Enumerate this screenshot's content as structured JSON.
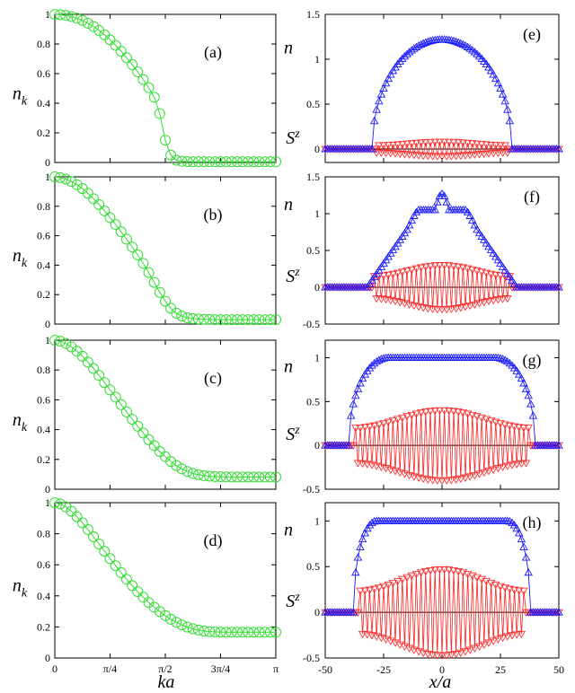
{
  "figure": {
    "left_xlabel": "ka",
    "right_xlabel": "x/a"
  },
  "chart_data": [
    {
      "type": "scatter",
      "panel": "(a)",
      "ylabel": "n_k",
      "xlim": [
        0,
        3.1416
      ],
      "ylim": [
        0,
        1
      ],
      "yticks": [
        "0",
        "0.2",
        "0.4",
        "0.6",
        "0.8",
        "1"
      ],
      "xticks": [],
      "series": [
        {
          "color": "#33dd33",
          "marker": "circle",
          "x": [
            0,
            0.0785,
            0.157,
            0.236,
            0.314,
            0.393,
            0.471,
            0.55,
            0.628,
            0.707,
            0.785,
            0.864,
            0.942,
            1.021,
            1.1,
            1.178,
            1.257,
            1.335,
            1.414,
            1.492,
            1.571,
            1.649,
            1.728,
            1.806,
            1.885,
            1.963,
            2.042,
            2.121,
            2.199,
            2.278,
            2.356,
            2.435,
            2.513,
            2.592,
            2.67,
            2.749,
            2.827,
            2.906,
            2.985,
            3.063,
            3.142
          ],
          "y": [
            1.0,
            0.998,
            0.993,
            0.985,
            0.974,
            0.959,
            0.94,
            0.918,
            0.892,
            0.862,
            0.828,
            0.791,
            0.751,
            0.707,
            0.661,
            0.612,
            0.56,
            0.505,
            0.44,
            0.33,
            0.15,
            0.05,
            0.015,
            0.008,
            0.006,
            0.005,
            0.005,
            0.005,
            0.005,
            0.005,
            0.005,
            0.005,
            0.005,
            0.005,
            0.005,
            0.005,
            0.005,
            0.005,
            0.005,
            0.005,
            0.005
          ]
        }
      ]
    },
    {
      "type": "scatter",
      "panel": "(b)",
      "ylabel": "n_k",
      "xlim": [
        0,
        3.1416
      ],
      "ylim": [
        0,
        1
      ],
      "yticks": [
        "0",
        "0.2",
        "0.4",
        "0.6",
        "0.8",
        "1"
      ],
      "xticks": [],
      "series": [
        {
          "color": "#33dd33",
          "marker": "circle",
          "x": [
            0,
            0.0785,
            0.157,
            0.236,
            0.314,
            0.393,
            0.471,
            0.55,
            0.628,
            0.707,
            0.785,
            0.864,
            0.942,
            1.021,
            1.1,
            1.178,
            1.257,
            1.335,
            1.414,
            1.492,
            1.571,
            1.649,
            1.728,
            1.806,
            1.885,
            1.963,
            2.042,
            2.121,
            2.199,
            2.278,
            2.356,
            2.435,
            2.513,
            2.592,
            2.67,
            2.749,
            2.827,
            2.906,
            2.985,
            3.063,
            3.142
          ],
          "y": [
            1.0,
            0.995,
            0.985,
            0.968,
            0.947,
            0.92,
            0.888,
            0.851,
            0.812,
            0.769,
            0.723,
            0.676,
            0.627,
            0.576,
            0.524,
            0.47,
            0.412,
            0.35,
            0.283,
            0.215,
            0.155,
            0.107,
            0.074,
            0.054,
            0.043,
            0.037,
            0.034,
            0.032,
            0.031,
            0.03,
            0.03,
            0.03,
            0.03,
            0.03,
            0.03,
            0.03,
            0.03,
            0.03,
            0.03,
            0.03,
            0.03
          ]
        }
      ]
    },
    {
      "type": "scatter",
      "panel": "(c)",
      "ylabel": "n_k",
      "xlim": [
        0,
        3.1416
      ],
      "ylim": [
        0,
        1
      ],
      "yticks": [
        "0",
        "0.2",
        "0.4",
        "0.6",
        "0.8",
        "1"
      ],
      "xticks": [],
      "series": [
        {
          "color": "#33dd33",
          "marker": "circle",
          "x": [
            0,
            0.0785,
            0.157,
            0.236,
            0.314,
            0.393,
            0.471,
            0.55,
            0.628,
            0.707,
            0.785,
            0.864,
            0.942,
            1.021,
            1.1,
            1.178,
            1.257,
            1.335,
            1.414,
            1.492,
            1.571,
            1.649,
            1.728,
            1.806,
            1.885,
            1.963,
            2.042,
            2.121,
            2.199,
            2.278,
            2.356,
            2.435,
            2.513,
            2.592,
            2.67,
            2.749,
            2.827,
            2.906,
            2.985,
            3.063,
            3.142
          ],
          "y": [
            1.0,
            0.993,
            0.978,
            0.955,
            0.926,
            0.892,
            0.853,
            0.81,
            0.764,
            0.716,
            0.667,
            0.618,
            0.568,
            0.519,
            0.47,
            0.423,
            0.377,
            0.333,
            0.292,
            0.253,
            0.218,
            0.186,
            0.159,
            0.136,
            0.119,
            0.106,
            0.097,
            0.091,
            0.087,
            0.085,
            0.084,
            0.083,
            0.082,
            0.082,
            0.082,
            0.082,
            0.082,
            0.082,
            0.082,
            0.082,
            0.082
          ]
        }
      ]
    },
    {
      "type": "scatter",
      "panel": "(d)",
      "ylabel": "n_k",
      "xlim": [
        0,
        3.1416
      ],
      "ylim": [
        0,
        1
      ],
      "yticks": [
        "0",
        "0.2",
        "0.4",
        "0.6",
        "0.8",
        "1"
      ],
      "xticks": [
        "0",
        "π/4",
        "π/2",
        "3π/4",
        "π"
      ],
      "series": [
        {
          "color": "#33dd33",
          "marker": "circle",
          "x": [
            0,
            0.0785,
            0.157,
            0.236,
            0.314,
            0.393,
            0.471,
            0.55,
            0.628,
            0.707,
            0.785,
            0.864,
            0.942,
            1.021,
            1.1,
            1.178,
            1.257,
            1.335,
            1.414,
            1.492,
            1.571,
            1.649,
            1.728,
            1.806,
            1.885,
            1.963,
            2.042,
            2.121,
            2.199,
            2.278,
            2.356,
            2.435,
            2.513,
            2.592,
            2.67,
            2.749,
            2.827,
            2.906,
            2.985,
            3.063,
            3.142
          ],
          "y": [
            1.0,
            0.992,
            0.973,
            0.945,
            0.91,
            0.87,
            0.827,
            0.781,
            0.734,
            0.687,
            0.64,
            0.594,
            0.55,
            0.507,
            0.466,
            0.428,
            0.392,
            0.358,
            0.327,
            0.299,
            0.273,
            0.25,
            0.23,
            0.213,
            0.199,
            0.188,
            0.18,
            0.174,
            0.17,
            0.168,
            0.167,
            0.166,
            0.166,
            0.166,
            0.166,
            0.166,
            0.166,
            0.166,
            0.166,
            0.166,
            0.166
          ]
        }
      ]
    },
    {
      "type": "scatter",
      "panel": "(e)",
      "ylabel_top": "n",
      "ylabel_bottom": "S^z",
      "xlim": [
        -50,
        50
      ],
      "ylim": [
        -0.15,
        1.5
      ],
      "yticks": [
        "0",
        "0.5",
        "1",
        "1.5"
      ],
      "xticks": [],
      "n_profile": {
        "type": "dome",
        "edge": 30,
        "height": 1.22,
        "plateau": 0
      },
      "sz_profile": {
        "type": "stagger",
        "edge": 29,
        "amp": 0.08
      },
      "series": [
        {
          "name": "n",
          "color": "#1a1aff",
          "marker": "triangle-up"
        },
        {
          "name": "S^z",
          "color": "#ff2020",
          "marker": "triangle-down"
        }
      ]
    },
    {
      "type": "scatter",
      "panel": "(f)",
      "ylabel_top": "n",
      "ylabel_bottom": "S^z",
      "xlim": [
        -50,
        50
      ],
      "ylim": [
        -0.5,
        1.5
      ],
      "yticks": [
        "-0.5",
        "0",
        "0.5",
        "1",
        "1.5"
      ],
      "xticks": [],
      "n_profile": {
        "type": "plateau-bumps",
        "edge": 32,
        "height": 1.05,
        "bump": 0.22,
        "bump_width": 7
      },
      "sz_profile": {
        "type": "stagger",
        "edge": 30,
        "amp": 0.3
      },
      "series": [
        {
          "name": "n",
          "color": "#1a1aff",
          "marker": "triangle-up"
        },
        {
          "name": "S^z",
          "color": "#ff2020",
          "marker": "triangle-down"
        }
      ]
    },
    {
      "type": "scatter",
      "panel": "(g)",
      "ylabel_top": "n",
      "ylabel_bottom": "S^z",
      "xlim": [
        -50,
        50
      ],
      "ylim": [
        -0.5,
        1.2
      ],
      "yticks": [
        "-0.5",
        "0",
        "0.5",
        "1"
      ],
      "xticks": [],
      "n_profile": {
        "type": "plateau",
        "edge": 40,
        "height": 1.0,
        "plateau": 23
      },
      "sz_profile": {
        "type": "stagger",
        "edge": 38,
        "amp": 0.4
      },
      "series": [
        {
          "name": "n",
          "color": "#1a1aff",
          "marker": "triangle-up"
        },
        {
          "name": "S^z",
          "color": "#ff2020",
          "marker": "triangle-down"
        }
      ]
    },
    {
      "type": "scatter",
      "panel": "(h)",
      "ylabel_top": "n",
      "ylabel_bottom": "S^z",
      "xlim": [
        -50,
        50
      ],
      "ylim": [
        -0.5,
        1.2
      ],
      "yticks": [
        "-0.5",
        "0",
        "0.5",
        "1"
      ],
      "xticks": [
        "-50",
        "-25",
        "0",
        "25",
        "50"
      ],
      "n_profile": {
        "type": "plateau",
        "edge": 38,
        "height": 1.0,
        "plateau": 28
      },
      "sz_profile": {
        "type": "stagger",
        "edge": 36,
        "amp": 0.47
      },
      "series": [
        {
          "name": "n",
          "color": "#1a1aff",
          "marker": "triangle-up"
        },
        {
          "name": "S^z",
          "color": "#ff2020",
          "marker": "triangle-down"
        }
      ]
    }
  ]
}
